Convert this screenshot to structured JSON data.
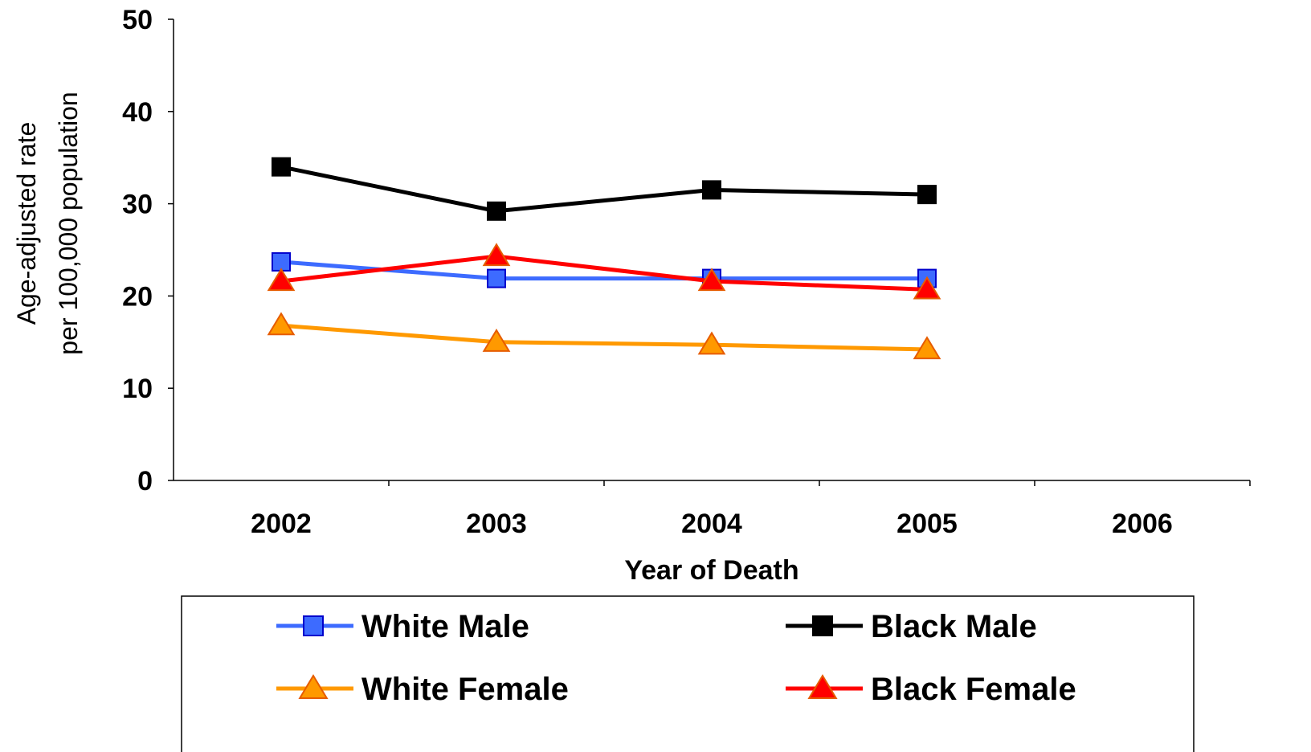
{
  "chart_data": {
    "type": "line",
    "categories": [
      "2002",
      "2003",
      "2004",
      "2005",
      "2006"
    ],
    "series": [
      {
        "name": "White Male",
        "values": [
          23.7,
          21.9,
          21.9,
          21.9,
          null
        ],
        "color": "#3d6bff",
        "marker": "square"
      },
      {
        "name": "Black Male",
        "values": [
          34.0,
          29.2,
          31.5,
          31.0,
          null
        ],
        "color": "#000000",
        "marker": "square"
      },
      {
        "name": "White Female",
        "values": [
          16.8,
          15.0,
          14.7,
          14.2,
          null
        ],
        "color": "#ff9900",
        "marker": "triangle"
      },
      {
        "name": "Black Female",
        "values": [
          21.6,
          24.3,
          21.6,
          20.7,
          null
        ],
        "color": "#ff0000",
        "marker": "triangle"
      }
    ],
    "xlabel": "Year of Death",
    "ylabel_line1": "Age-adjusted rate",
    "ylabel_line2": "per 100,000 population",
    "ylim": [
      0,
      50
    ],
    "yticks": [
      "0",
      "10",
      "20",
      "30",
      "40",
      "50"
    ],
    "grid": false,
    "legend_position": "bottom"
  }
}
